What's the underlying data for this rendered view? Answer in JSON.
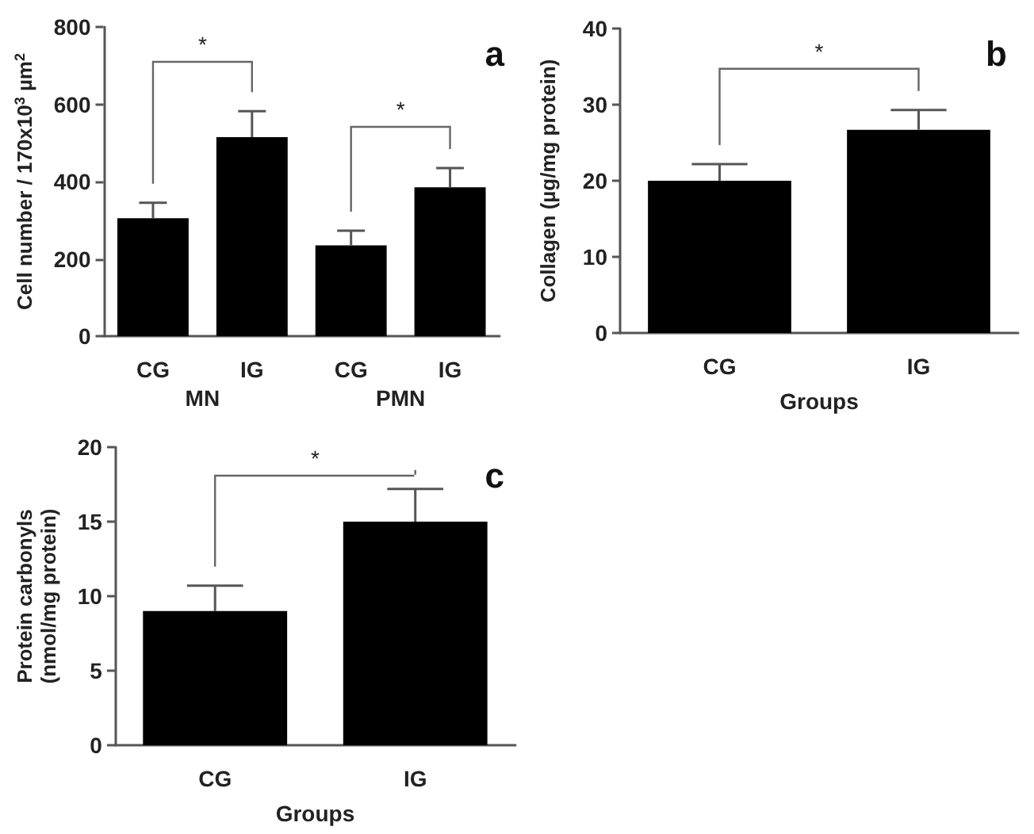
{
  "chart_data": [
    {
      "type": "bar",
      "title": "a",
      "ylabel": "Cell number / 170x10$^{3}$ µm$^{2}$",
      "categories": [
        "CG",
        "IG",
        "CG",
        "IG"
      ],
      "values": [
        305,
        515,
        235,
        385
      ],
      "colors": [
        "#000000",
        "#000000",
        "#000000",
        "#000000"
      ],
      "errors": [
        [
          305,
          345
        ],
        [
          515,
          582
        ],
        [
          235,
          273
        ],
        [
          385,
          435
        ]
      ],
      "ylim": [
        0,
        800
      ],
      "yticks": [
        0,
        200,
        400,
        600,
        800
      ],
      "grid": false,
      "annotations": [
        "*",
        "*",
        "MN",
        "PMN"
      ]
    },
    {
      "type": "bar",
      "title": "b",
      "ylabel": "Collagen (µg/mg protein)",
      "xlabel": "Groups",
      "categories": [
        "CG",
        "IG"
      ],
      "values": [
        20,
        26.7
      ],
      "colors": [
        "#000000",
        "#000000"
      ],
      "errors": [
        [
          20,
          22.2
        ],
        [
          26.7,
          29.3
        ]
      ],
      "ylim": [
        0,
        40
      ],
      "yticks": [
        0,
        10,
        20,
        30,
        40
      ],
      "grid": false,
      "annotations": [
        "*"
      ]
    },
    {
      "type": "bar",
      "title": "c",
      "ylabel": "Protein carbonyls\n(nmol/mg protein)",
      "xlabel": "Groups",
      "categories": [
        "CG",
        "IG"
      ],
      "values": [
        9,
        15
      ],
      "colors": [
        "#000000",
        "#000000"
      ],
      "errors": [
        [
          9,
          10.7
        ],
        [
          15,
          17.2
        ]
      ],
      "ylim": [
        0,
        20
      ],
      "yticks": [
        0,
        5,
        10,
        15,
        20
      ],
      "grid": false,
      "annotations": [
        "*"
      ]
    }
  ]
}
